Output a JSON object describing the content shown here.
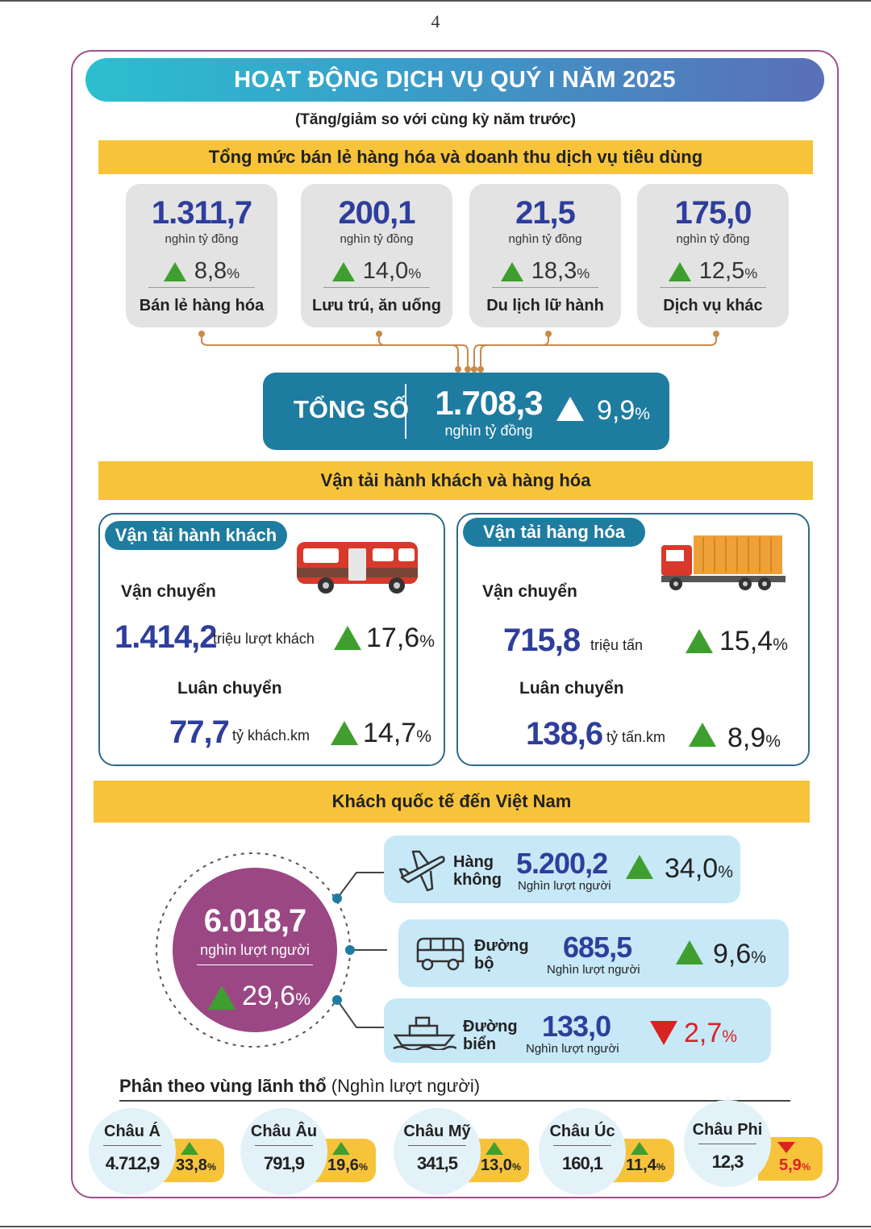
{
  "page_number": "4",
  "title": "HOẠT ĐỘNG DỊCH VỤ QUÝ I NĂM 2025",
  "subtitle": "(Tăng/giảm so với cùng kỳ năm trước)",
  "retail": {
    "heading": "Tổng mức bán lẻ hàng hóa và doanh thu dịch vụ tiêu dùng",
    "unit": "nghìn tỷ đồng",
    "items": [
      {
        "value": "1.311,7",
        "change": "8,8",
        "label": "Bán lẻ hàng hóa"
      },
      {
        "value": "200,1",
        "change": "14,0",
        "label": "Lưu trú, ăn uống"
      },
      {
        "value": "21,5",
        "change": "18,3",
        "label": "Du lịch lữ hành"
      },
      {
        "value": "175,0",
        "change": "12,5",
        "label": "Dịch vụ khác"
      }
    ],
    "total": {
      "label": "TỔNG SỐ",
      "value": "1.708,3",
      "unit": "nghìn tỷ đồng",
      "change": "9,9"
    }
  },
  "transport": {
    "heading": "Vận tải hành khách và hàng hóa",
    "passenger": {
      "title": "Vận tải hành khách",
      "carry_label": "Vận chuyển",
      "carry_value": "1.414,2",
      "carry_unit": "triệu lượt khách",
      "carry_change": "17,6",
      "rotate_label": "Luân chuyển",
      "rotate_value": "77,7",
      "rotate_unit": "tỷ khách.km",
      "rotate_change": "14,7"
    },
    "cargo": {
      "title": "Vận tải hàng hóa",
      "carry_label": "Vận chuyển",
      "carry_value": "715,8",
      "carry_unit": "triệu tấn",
      "carry_change": "15,4",
      "rotate_label": "Luân chuyển",
      "rotate_value": "138,6",
      "rotate_unit": "tỷ tấn.km",
      "rotate_change": "8,9"
    }
  },
  "visitors": {
    "heading": "Khách quốc tế đến Việt Nam",
    "total_value": "6.018,7",
    "total_unit": "nghìn lượt người",
    "total_change": "29,6",
    "modes": [
      {
        "label_1": "Hàng",
        "label_2": "không",
        "value": "5.200,2",
        "unit": "Nghìn lượt người",
        "change": "34,0",
        "direction": "up",
        "icon": "airplane-icon"
      },
      {
        "label_1": "Đường",
        "label_2": "bộ",
        "value": "685,5",
        "unit": "Nghìn lượt người",
        "change": "9,6",
        "direction": "up",
        "icon": "bus-icon"
      },
      {
        "label_1": "Đường",
        "label_2": "biển",
        "value": "133,0",
        "unit": "Nghìn lượt người",
        "change": "2,7",
        "direction": "down",
        "icon": "ship-icon"
      }
    ],
    "regions_title": "Phân theo vùng lãnh thổ",
    "regions_unit": "(Nghìn lượt người)",
    "regions": [
      {
        "name": "Châu Á",
        "value": "4.712,9",
        "change": "33,8",
        "direction": "up"
      },
      {
        "name": "Châu Âu",
        "value": "791,9",
        "change": "19,6",
        "direction": "up"
      },
      {
        "name": "Châu Mỹ",
        "value": "341,5",
        "change": "13,0",
        "direction": "up"
      },
      {
        "name": "Châu Úc",
        "value": "160,1",
        "change": "11,4",
        "direction": "up"
      },
      {
        "name": "Châu Phi",
        "value": "12,3",
        "change": "5,9",
        "direction": "down"
      }
    ]
  },
  "percent_sign": "%",
  "colors": {
    "accent_blue": "#2e3e9c",
    "section_yellow": "#f6c33b",
    "total_teal": "#1e7ca0",
    "up_green": "#3f9f2e",
    "down_red": "#d92323",
    "circle_purple": "#9b4784"
  }
}
